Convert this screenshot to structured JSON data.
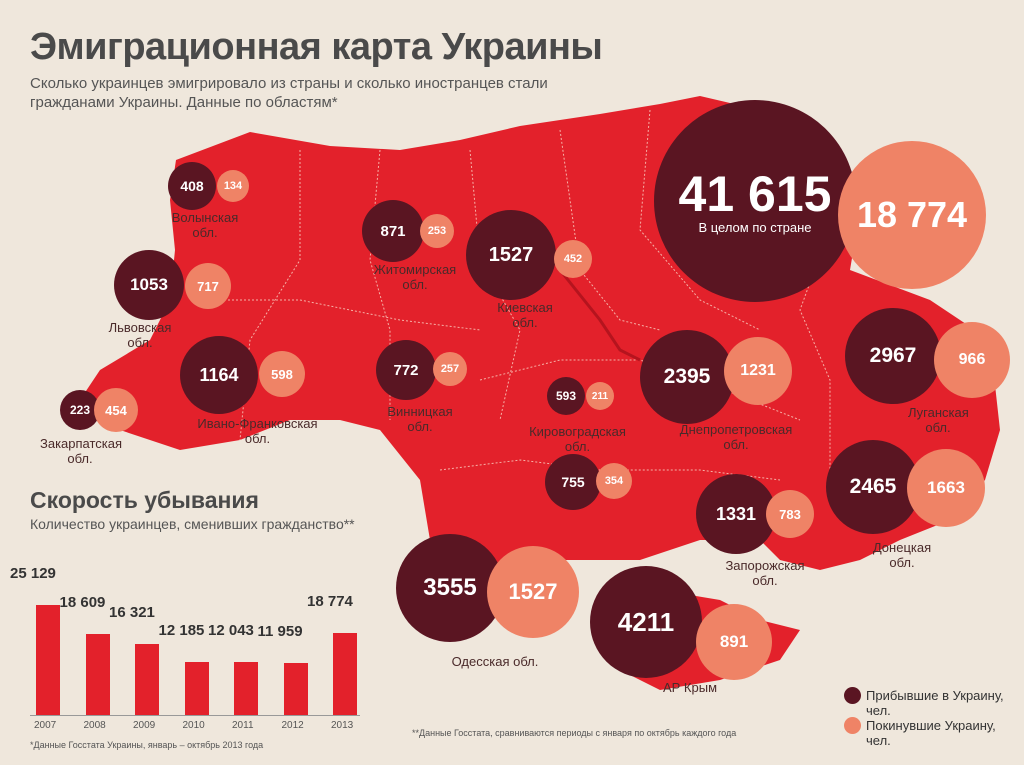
{
  "header": {
    "title": "Эмиграционная карта Украины",
    "subtitle": "Сколько украинцев эмигрировало из страны и сколько иностранцев стали гражданами Украины. Данные по областям*"
  },
  "colors": {
    "map": "#e3212b",
    "arrived": "#5a1522",
    "departed": "#ef8366"
  },
  "total": {
    "arrived": "41 615",
    "departed": "18 774",
    "label": "В целом по стране"
  },
  "regions": [
    {
      "name": "Волынская обл.",
      "arrived": "408",
      "departed": "134"
    },
    {
      "name": "Житомирская обл.",
      "arrived": "871",
      "departed": "253"
    },
    {
      "name": "Киевская обл.",
      "arrived": "1527",
      "departed": "452"
    },
    {
      "name": "Львовская обл.",
      "arrived": "1053",
      "departed": "717"
    },
    {
      "name": "Ивано-Франковская обл.",
      "arrived": "1164",
      "departed": "598"
    },
    {
      "name": "Закарпатская обл.",
      "arrived": "223",
      "departed": "454"
    },
    {
      "name": "Винницкая обл.",
      "arrived": "772",
      "departed": "257"
    },
    {
      "name": "Кировоградская обл.",
      "arrived": "593",
      "departed": "211"
    },
    {
      "name": "Днепропетровская обл.",
      "arrived": "2395",
      "departed": "1231"
    },
    {
      "name": "Луганская обл.",
      "arrived": "2967",
      "departed": "966"
    },
    {
      "name": "",
      "arrived": "755",
      "departed": "354"
    },
    {
      "name": "Запорожская обл.",
      "arrived": "1331",
      "departed": "783"
    },
    {
      "name": "Донецкая обл.",
      "arrived": "2465",
      "departed": "1663"
    },
    {
      "name": "Одесская обл.",
      "arrived": "3555",
      "departed": "1527"
    },
    {
      "name": "АР Крым",
      "arrived": "4211",
      "departed": "891"
    }
  ],
  "legend": {
    "arrived": "Прибывшие в Украину, чел.",
    "departed": "Покинувшие Украину, чел."
  },
  "footnote_map": "**Данные Госстата, сравниваются периоды с января по октябрь каждого года",
  "chart_data": {
    "type": "bar",
    "title": "Скорость убывания",
    "subtitle": "Количество украинцев, сменивших гражданство**",
    "categories": [
      "2007",
      "2008",
      "2009",
      "2010",
      "2011",
      "2012",
      "2013"
    ],
    "values": [
      25129,
      18609,
      16321,
      12185,
      12043,
      11959,
      18774
    ],
    "labels": [
      "25 129",
      "18 609",
      "16 321",
      "12 185",
      "12 043",
      "11 959",
      "18 774"
    ],
    "footnote": "*Данные Госстата Украины, январь – октябрь 2013 года"
  }
}
